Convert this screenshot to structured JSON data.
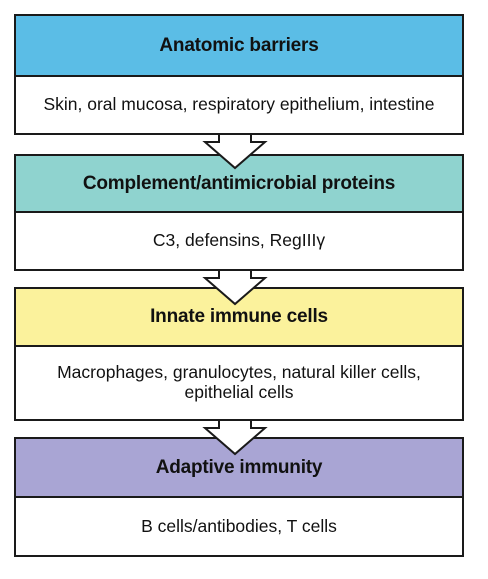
{
  "stages": [
    {
      "title": "Anatomic barriers",
      "body": "Skin, oral mucosa, respiratory epithelium, intestine",
      "color": "#5bbde6"
    },
    {
      "title": "Complement/antimicrobial proteins",
      "body": "C3, defensins, RegIIIγ",
      "color": "#8fd3cf"
    },
    {
      "title": "Innate immune cells",
      "body": "Macrophages, granulocytes, natural killer cells,\nepithelial cells",
      "color": "#fbf29c"
    },
    {
      "title": "Adaptive immunity",
      "body": "B cells/antibodies, T cells",
      "color": "#a9a5d4"
    }
  ]
}
